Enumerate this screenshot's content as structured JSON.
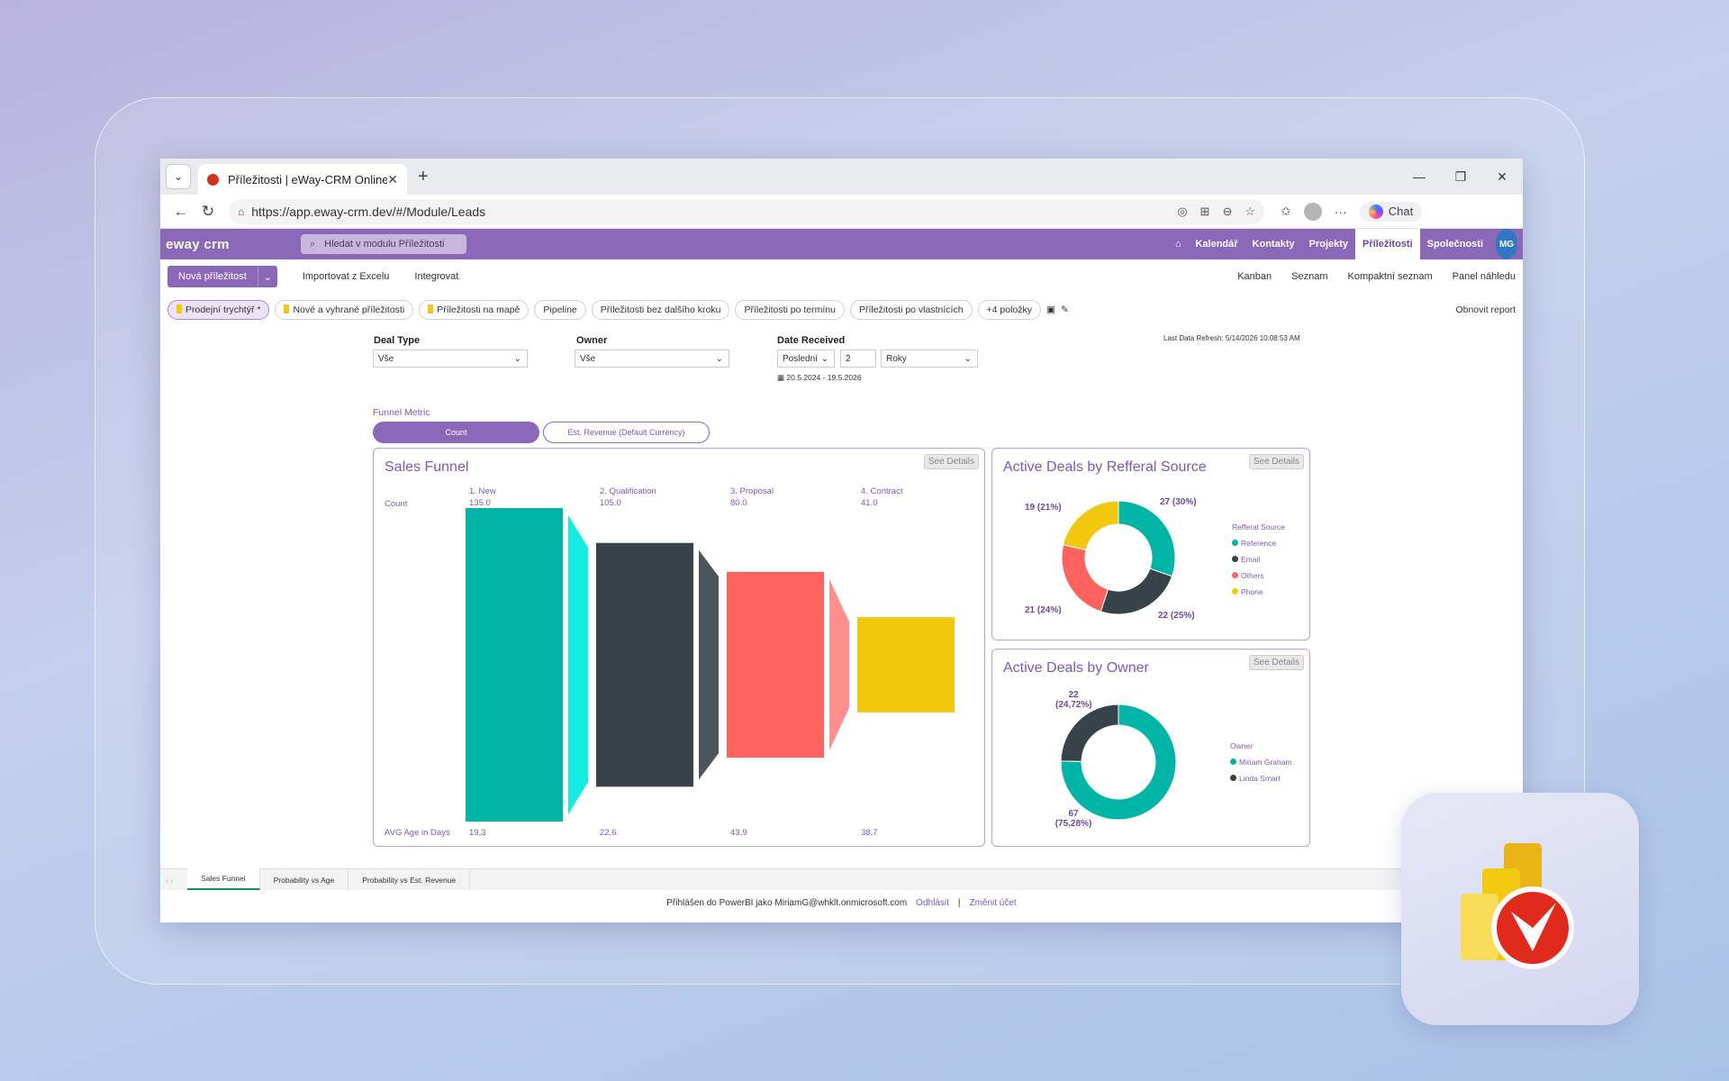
{
  "browser": {
    "tab_title": "Příležitosti | eWay-CRM Online",
    "url": "https://app.eway-crm.dev/#/Module/Leads",
    "chat_label": "Chat"
  },
  "app": {
    "logo": "eway crm",
    "search_placeholder": "Hledat v modulu Příležitosti",
    "nav": [
      "Kalendář",
      "Kontakty",
      "Projekty",
      "Příležitosti",
      "Společnosti"
    ],
    "user_initials": "MG"
  },
  "toolbar": {
    "new_label": "Nová příležitost",
    "import_label": "Importovat z Excelu",
    "integrate_label": "Integrovat",
    "right": [
      "Kanban",
      "Seznam",
      "Kompaktní seznam",
      "Panel náhledu"
    ]
  },
  "views": {
    "items": [
      "Prodejní trychtýř *",
      "Nové a vyhrané příležitosti",
      "Příležitosti na mapě",
      "Pipeline",
      "Příležitosti bez dalšího kroku",
      "Příležitosti po termínu",
      "Příležitosti po vlastnících",
      "+4 položky"
    ],
    "refresh_label": "Obnovit report"
  },
  "filters": {
    "deal_type_label": "Deal Type",
    "deal_type_value": "Vše",
    "owner_label": "Owner",
    "owner_value": "Vše",
    "date_label": "Date Received",
    "date_mode": "Poslední",
    "date_count": "2",
    "date_unit": "Roky",
    "date_range": "20.5.2024 - 19.5.2026",
    "last_refresh": "Last Data Refresh: 5/14/2026 10:08:53 AM"
  },
  "metric": {
    "label": "Funnel Metric",
    "count": "Count",
    "revenue": "Est. Revenue (Default Currency)"
  },
  "funnel": {
    "title": "Sales Funnel",
    "see_details": "See Details",
    "row_label": "Count",
    "age_label": "AVG Age in Days",
    "stages": [
      {
        "name": "1. New",
        "count": "135.0",
        "age": "19,3"
      },
      {
        "name": "2. Qualification",
        "count": "105.0",
        "age": "22,6"
      },
      {
        "name": "3. Proposal",
        "count": "80.0",
        "age": "43,9"
      },
      {
        "name": "4. Contract",
        "count": "41.0",
        "age": "38,7"
      }
    ]
  },
  "referral": {
    "title": "Active Deals by Refferal Source",
    "see_details": "See Details",
    "legend_title": "Refferal Source",
    "labels": [
      "27 (30%)",
      "22 (25%)",
      "21 (24%)",
      "19 (21%)"
    ],
    "legend": [
      "Reference",
      "Email",
      "Others",
      "Phone"
    ]
  },
  "owner": {
    "title": "Active Deals by Owner",
    "see_details": "See Details",
    "legend_title": "Owner",
    "label_top_a": "22",
    "label_top_b": "(24,72%)",
    "label_bot_a": "67",
    "label_bot_b": "(75,28%)",
    "legend": [
      "Miriam Graham",
      "Linda Smart"
    ]
  },
  "pages": [
    "Sales Funnel",
    "Probability vs Age",
    "Probability vs Est. Revenue"
  ],
  "footer": {
    "signed": "Přihlášen do PowerBI jako MiriamG@whklt.onmicrosoft.com",
    "logout": "Odhlásit",
    "change": "Změnit účet"
  },
  "chart_data": [
    {
      "type": "funnel",
      "title": "Sales Funnel",
      "categories": [
        "1. New",
        "2. Qualification",
        "3. Proposal",
        "4. Contract"
      ],
      "values": [
        135,
        105,
        80,
        41
      ],
      "avg_age_days": [
        19.3,
        22.6,
        43.9,
        38.7
      ],
      "colors": [
        "#00b5a5",
        "#374249",
        "#fd625e",
        "#f2c80f"
      ]
    },
    {
      "type": "pie",
      "title": "Active Deals by Refferal Source",
      "categories": [
        "Reference",
        "Email",
        "Others",
        "Phone"
      ],
      "values": [
        27,
        22,
        21,
        19
      ],
      "colors": [
        "#00b5a5",
        "#374249",
        "#fd625e",
        "#f2c80f"
      ]
    },
    {
      "type": "pie",
      "title": "Active Deals by Owner",
      "categories": [
        "Miriam Graham",
        "Linda Smart"
      ],
      "values": [
        67,
        22
      ],
      "colors": [
        "#00b5a5",
        "#374249"
      ]
    }
  ]
}
